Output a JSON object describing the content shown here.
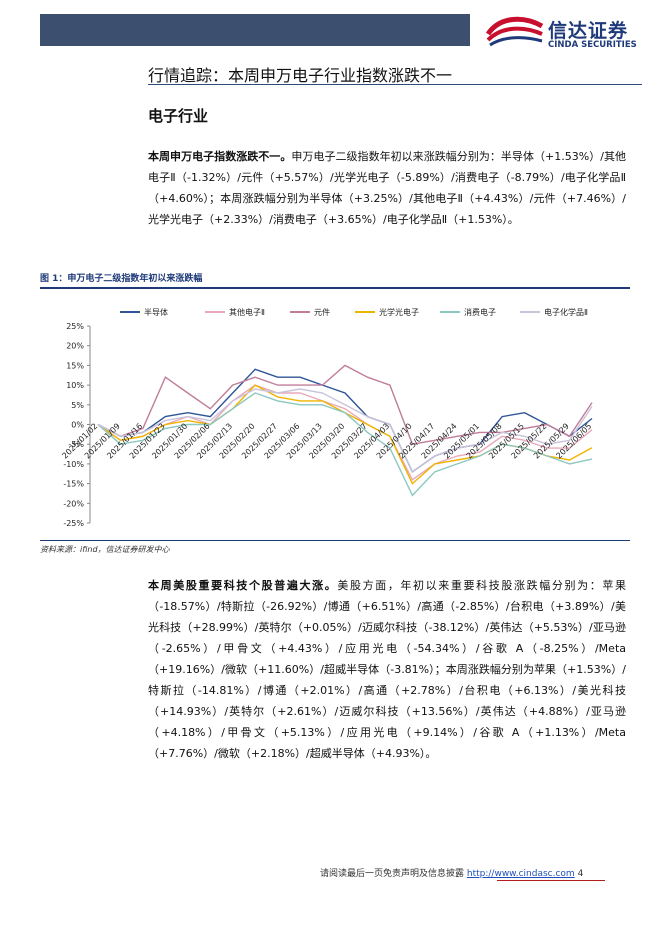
{
  "header": {
    "logo_cn": "信达证券",
    "logo_en": "CINDA SECURITIES"
  },
  "section_title": "行情追踪：本周申万电子行业指数涨跌不一",
  "subtitle": "电子行业",
  "paragraphs": [
    {
      "lead": "本周申万电子指数涨跌不一。",
      "text": "申万电子二级指数年初以来涨跌幅分别为：半导体（+1.53%）/其他电子Ⅱ（-1.32%）/元件（+5.57%）/光学光电子（-5.89%）/消费电子（-8.79%）/电子化学品Ⅱ（+4.60%）；本周涨跌幅分别为半导体（+3.25%）/其他电子Ⅱ（+4.43%）/元件（+7.46%）/光学光电子（+2.33%）/消费电子（+3.65%）/电子化学品Ⅱ（+1.53%）。"
    },
    {
      "lead": "本周美股重要科技个股普遍大涨。",
      "text": "美股方面，年初以来重要科技股涨跌幅分别为：苹果（-18.57%）/特斯拉（-26.92%）/博通（+6.51%）/高通（-2.85%）/台积电（+3.89%）/美光科技（+28.99%）/英特尔（+0.05%）/迈威尔科技（-38.12%）/英伟达（+5.53%）/亚马逊（-2.65%）/甲骨文（+4.43%）/应用光电（-54.34%）/谷歌 A（-8.25%）/Meta（+19.16%）/微软（+11.60%）/超威半导体（-3.81%）；本周涨跌幅分别为苹果（+1.53%）/特斯拉（-14.81%）/博通（+2.01%）/高通（+2.78%）/台积电（+6.13%）/美光科技（+14.93%）/英特尔（+2.61%）/迈威尔科技（+13.56%）/英伟达（+4.88%）/亚马逊（+4.18%）/甲骨文（+5.13%）/应用光电（+9.14%）/谷歌 A（+1.13%）/Meta（+7.76%）/微软（+2.18%）/超威半导体（+4.93%）。"
    }
  ],
  "figure": {
    "caption": "图 1：申万电子二级指数年初以来涨跌幅",
    "source": "资料来源：ifind，信达证券研发中心"
  },
  "chart_data": {
    "type": "line",
    "legend": "top",
    "grid": false,
    "x": [
      "2025/01/02",
      "2025/01/09",
      "2025/01/16",
      "2025/01/23",
      "2025/01/30",
      "2025/02/06",
      "2025/02/13",
      "2025/02/20",
      "2025/02/27",
      "2025/03/06",
      "2025/03/13",
      "2025/03/20",
      "2025/03/27",
      "2025/04/03",
      "2025/04/10",
      "2025/04/17",
      "2025/04/24",
      "2025/05/01",
      "2025/05/08",
      "2025/05/15",
      "2025/05/22",
      "2025/05/29",
      "2025/06/05"
    ],
    "ylim": [
      -25,
      25
    ],
    "yticks": [
      {
        "value": -25,
        "label": "-25%"
      },
      {
        "value": -20,
        "label": "-20%"
      },
      {
        "value": -15,
        "label": "-15%"
      },
      {
        "value": -10,
        "label": "-10%"
      },
      {
        "value": -5,
        "label": "-5%"
      },
      {
        "value": 0,
        "label": "0%"
      },
      {
        "value": 5,
        "label": "5%"
      },
      {
        "value": 10,
        "label": "10%"
      },
      {
        "value": 15,
        "label": "15%"
      },
      {
        "value": 20,
        "label": "20%"
      },
      {
        "value": 25,
        "label": "25%"
      }
    ],
    "series": [
      {
        "name": "半导体",
        "color": "#2e5597",
        "values": [
          0,
          -3,
          -2,
          2,
          3,
          2,
          8,
          14,
          12,
          12,
          10,
          8,
          2,
          0,
          -12,
          -8,
          -6,
          -5,
          2,
          3,
          0,
          -3,
          1.53
        ]
      },
      {
        "name": "其他电子Ⅱ",
        "color": "#e8a9bb",
        "values": [
          0,
          -4,
          -3,
          0,
          2,
          0,
          6,
          10,
          8,
          8,
          6,
          4,
          0,
          -3,
          -14,
          -10,
          -8,
          -7,
          -3,
          -4,
          -6,
          -6,
          -1.32
        ]
      },
      {
        "name": "元件",
        "color": "#c07d9a",
        "values": [
          0,
          -3,
          -1,
          12,
          8,
          4,
          10,
          12,
          10,
          10,
          10,
          15,
          12,
          10,
          -5,
          -4,
          -3,
          -2,
          -2,
          -1,
          0,
          -3,
          5.57
        ]
      },
      {
        "name": "光学光电子",
        "color": "#f0b400",
        "values": [
          0,
          -4,
          -3,
          0,
          1,
          0,
          4,
          10,
          7,
          6,
          6,
          3,
          0,
          -3,
          -15,
          -10,
          -9,
          -8,
          -5,
          -6,
          -8,
          -9,
          -5.89
        ]
      },
      {
        "name": "消费电子",
        "color": "#8cc7c0",
        "values": [
          0,
          -5,
          -4,
          -1,
          0,
          0,
          4,
          8,
          6,
          5,
          5,
          3,
          -2,
          -6,
          -18,
          -12,
          -10,
          -8,
          -5,
          -6,
          -8,
          -10,
          -8.79
        ]
      },
      {
        "name": "电子化学品Ⅱ",
        "color": "#c9c3dc",
        "values": [
          0,
          -3,
          -2,
          1,
          2,
          1,
          6,
          9,
          8,
          9,
          8,
          5,
          2,
          0,
          -12,
          -8,
          -6,
          -5,
          -2,
          -3,
          -5,
          -4,
          4.6
        ]
      }
    ]
  },
  "footer": {
    "disclaimer": "请阅读最后一页免责声明及信息披露",
    "url": "http://www.cindasc.com",
    "page": 4
  }
}
